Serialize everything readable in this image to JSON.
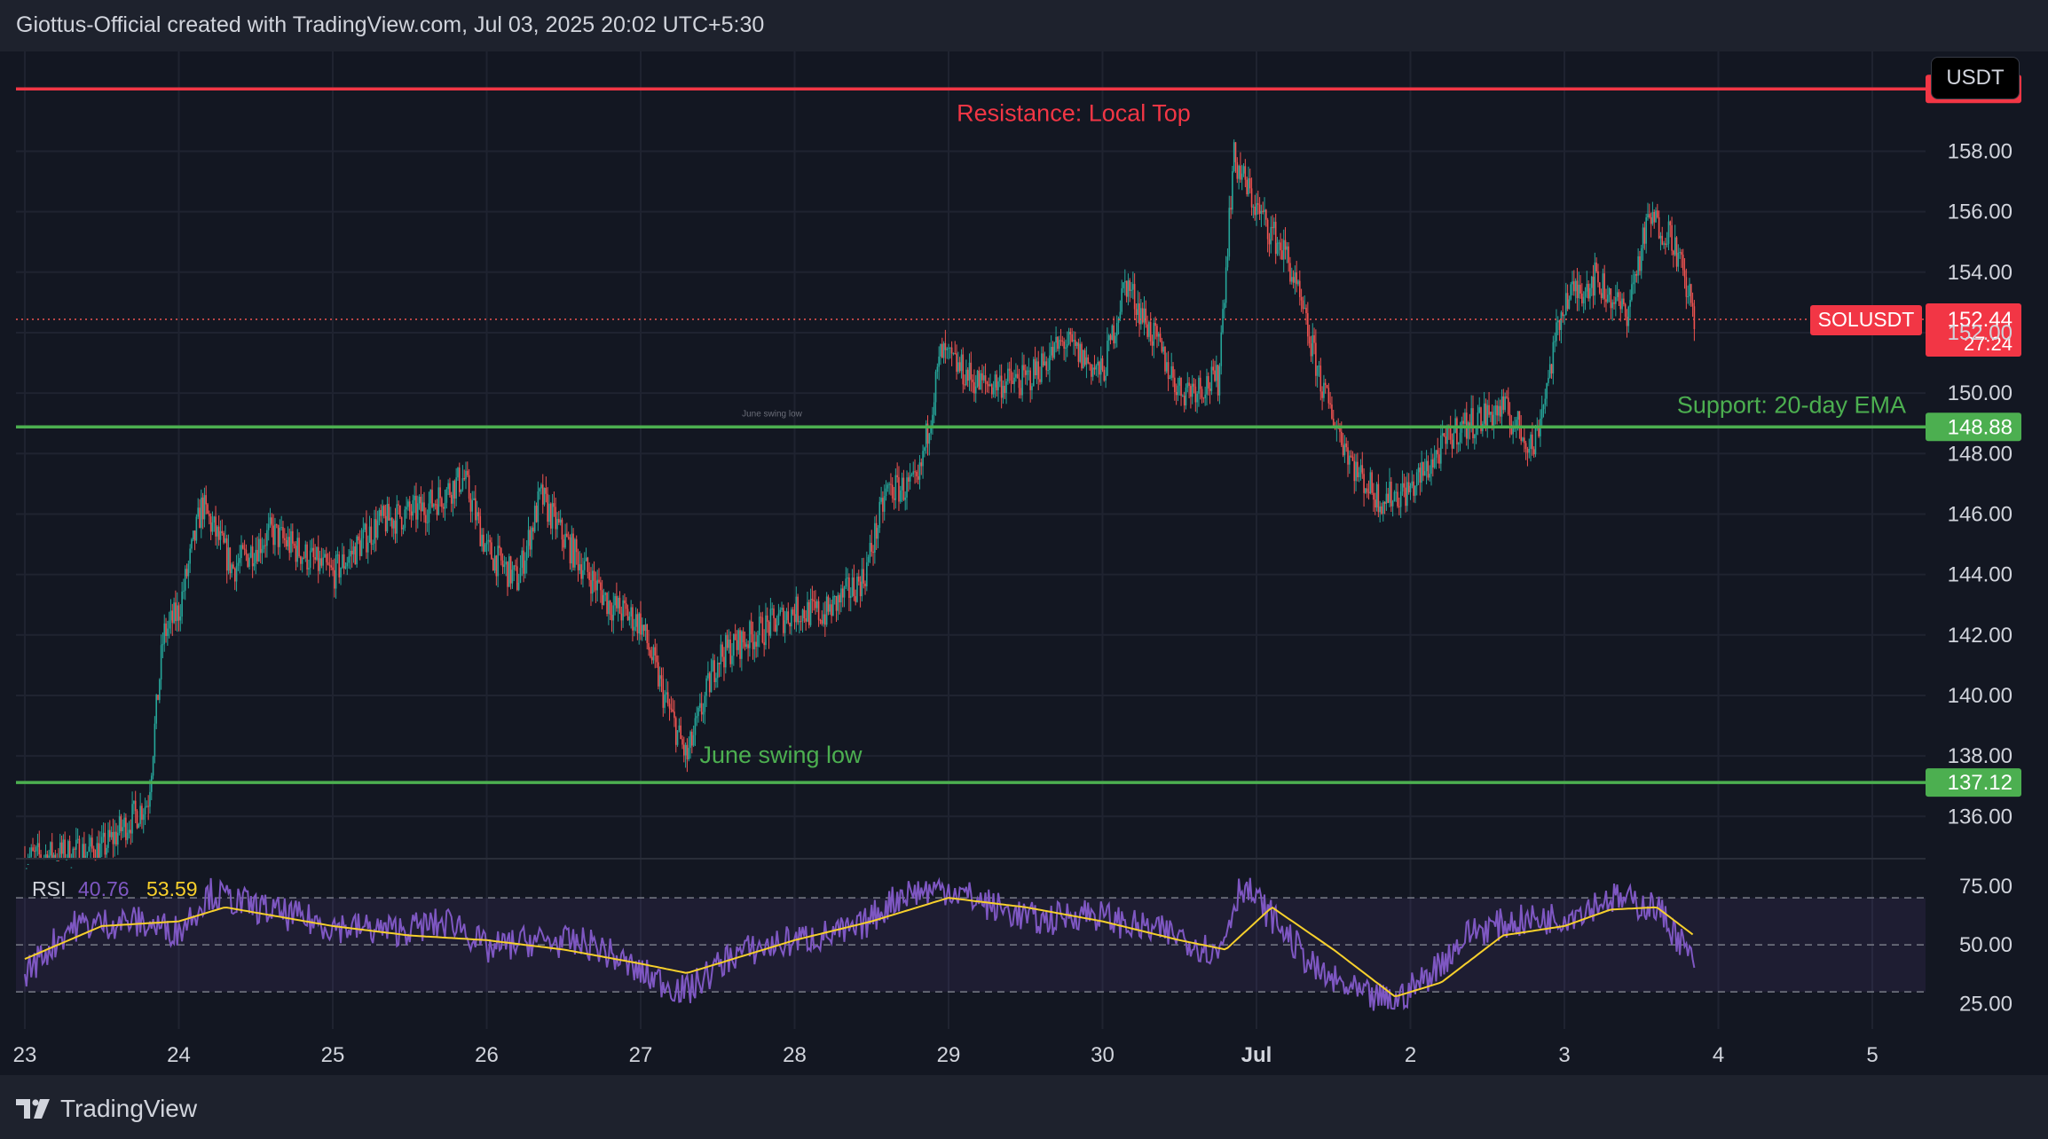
{
  "header": {
    "attribution": "Giottus-Official created with TradingView.com, Jul 03, 2025 20:02 UTC+5:30"
  },
  "footer": {
    "brand": "TradingView"
  },
  "currency_button": "USDT",
  "colors": {
    "background": "#131722",
    "panel": "#1e222d",
    "up": "#26a69a",
    "down": "#ef5350",
    "resistance": "#f23645",
    "support": "#4caf50",
    "rsi_line": "#7e57c2",
    "rsi_ma": "#f7d02c"
  },
  "chart_data": {
    "type": "candlestick",
    "symbol": "SOLUSDT",
    "interval": "15m",
    "price_axis": {
      "ticks": [
        "136.00",
        "138.00",
        "140.00",
        "142.00",
        "144.00",
        "146.00",
        "148.00",
        "150.00",
        "152.00",
        "154.00",
        "156.00",
        "158.00"
      ],
      "range": [
        134.6,
        161.3
      ]
    },
    "time_axis": {
      "labels": [
        "23",
        "24",
        "25",
        "26",
        "27",
        "28",
        "29",
        "30",
        "Jul",
        "2",
        "3",
        "4",
        "5"
      ]
    },
    "last_price": {
      "symbol_label": "SOLUSDT",
      "value": "152.44",
      "countdown": "27:24"
    },
    "levels": [
      {
        "value": 160.06,
        "label_value": "160.06",
        "kind": "resistance",
        "annotation": "Resistance: Local Top"
      },
      {
        "value": 148.88,
        "label_value": "148.88",
        "kind": "support",
        "annotation": "Support: 20-day EMA"
      },
      {
        "value": 137.12,
        "label_value": "137.12",
        "kind": "support",
        "annotation": "June swing low"
      }
    ],
    "faint_annotation": "June swing low",
    "price_path": [
      [
        "23",
        134.6
      ],
      [
        "23.5",
        134.9
      ],
      [
        "23.8",
        136.5
      ],
      [
        "23.9",
        142.0
      ],
      [
        "24",
        142.8
      ],
      [
        "24.15",
        146.3
      ],
      [
        "24.35",
        144.2
      ],
      [
        "24.6",
        145.4
      ],
      [
        "25",
        144.0
      ],
      [
        "25.3",
        145.7
      ],
      [
        "25.6",
        146.2
      ],
      [
        "25.85",
        147.2
      ],
      [
        "26",
        144.8
      ],
      [
        "26.2",
        143.8
      ],
      [
        "26.35",
        146.6
      ],
      [
        "26.5",
        145.2
      ],
      [
        "26.8",
        143.0
      ],
      [
        "27",
        142.4
      ],
      [
        "27.15",
        140.0
      ],
      [
        "27.3",
        137.9
      ],
      [
        "27.5",
        141.3
      ],
      [
        "27.8",
        142.2
      ],
      [
        "28",
        142.8
      ],
      [
        "28.2",
        142.7
      ],
      [
        "28.45",
        143.9
      ],
      [
        "28.6",
        146.8
      ],
      [
        "28.8",
        146.9
      ],
      [
        "28.95",
        151.3
      ],
      [
        "29.2",
        150.3
      ],
      [
        "29.5",
        150.4
      ],
      [
        "29.75",
        151.7
      ],
      [
        "30",
        150.6
      ],
      [
        "30.15",
        153.7
      ],
      [
        "30.5",
        150.1
      ],
      [
        "30.75",
        150.4
      ],
      [
        "30.85",
        157.8
      ],
      [
        "31",
        156.1
      ],
      [
        "31.2",
        154.5
      ],
      [
        "31.45",
        149.8
      ],
      [
        "31.65",
        147.4
      ],
      [
        "31.8",
        146.5
      ],
      [
        "32",
        146.8
      ],
      [
        "32.3",
        148.8
      ],
      [
        "32.6",
        149.5
      ],
      [
        "32.8",
        148.2
      ],
      [
        "33",
        153.1
      ],
      [
        "33.2",
        153.8
      ],
      [
        "33.4",
        152.6
      ],
      [
        "33.55",
        155.8
      ],
      [
        "33.7",
        155.2
      ],
      [
        "33.85",
        152.44
      ]
    ],
    "rsi": {
      "label": "RSI",
      "value": "40.76",
      "ma_value": "53.59",
      "ticks": [
        "25.00",
        "50.00",
        "75.00"
      ],
      "bands": [
        30,
        50,
        70
      ],
      "range": [
        18,
        84
      ],
      "path": [
        [
          "23",
          38
        ],
        [
          "23.3",
          58
        ],
        [
          "23.7",
          60
        ],
        [
          "24",
          56
        ],
        [
          "24.2",
          72
        ],
        [
          "24.5",
          66
        ],
        [
          "25",
          58
        ],
        [
          "25.4",
          56
        ],
        [
          "25.8",
          60
        ],
        [
          "26",
          48
        ],
        [
          "26.3",
          52
        ],
        [
          "26.7",
          50
        ],
        [
          "27",
          38
        ],
        [
          "27.3",
          30
        ],
        [
          "27.6",
          46
        ],
        [
          "28",
          52
        ],
        [
          "28.4",
          56
        ],
        [
          "28.7",
          72
        ],
        [
          "29",
          74
        ],
        [
          "29.3",
          66
        ],
        [
          "29.6",
          60
        ],
        [
          "29.9",
          64
        ],
        [
          "30.2",
          58
        ],
        [
          "30.5",
          54
        ],
        [
          "30.75",
          46
        ],
        [
          "30.9",
          76
        ],
        [
          "31.1",
          62
        ],
        [
          "31.4",
          38
        ],
        [
          "31.7",
          28
        ],
        [
          "31.9",
          26
        ],
        [
          "32.1",
          36
        ],
        [
          "32.4",
          56
        ],
        [
          "32.7",
          60
        ],
        [
          "33",
          62
        ],
        [
          "33.3",
          70
        ],
        [
          "33.6",
          66
        ],
        [
          "33.75",
          52
        ],
        [
          "33.85",
          40.76
        ]
      ],
      "ma_path": [
        [
          "23",
          44
        ],
        [
          "23.5",
          58
        ],
        [
          "24",
          60
        ],
        [
          "24.3",
          66
        ],
        [
          "25",
          58
        ],
        [
          "25.5",
          54
        ],
        [
          "26",
          52
        ],
        [
          "26.5",
          48
        ],
        [
          "27",
          42
        ],
        [
          "27.3",
          38
        ],
        [
          "27.7",
          46
        ],
        [
          "28",
          52
        ],
        [
          "28.5",
          60
        ],
        [
          "29",
          70
        ],
        [
          "29.5",
          66
        ],
        [
          "30",
          60
        ],
        [
          "30.5",
          52
        ],
        [
          "30.8",
          48
        ],
        [
          "31.1",
          66
        ],
        [
          "31.5",
          48
        ],
        [
          "31.9",
          28
        ],
        [
          "32.2",
          34
        ],
        [
          "32.6",
          54
        ],
        [
          "33",
          58
        ],
        [
          "33.3",
          65
        ],
        [
          "33.6",
          66
        ],
        [
          "33.85",
          53.59
        ]
      ]
    }
  }
}
